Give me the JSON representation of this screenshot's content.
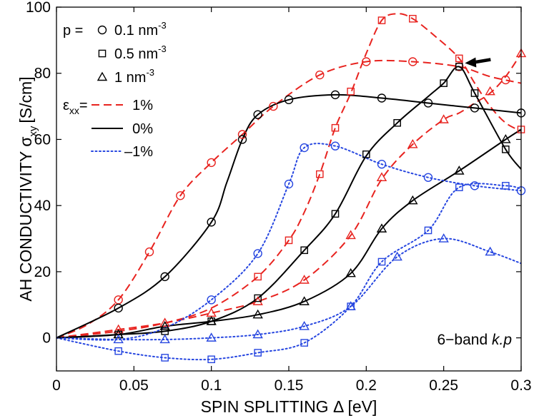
{
  "chart_data": {
    "type": "line",
    "title": "",
    "xlabel": "SPIN SPLITTING Δ [eV]",
    "ylabel": "AH CONDUCTIVITY σ",
    "ylabel_sub": "xy",
    "ylabel_unit": "[S/cm]",
    "xlim": [
      0,
      0.3
    ],
    "ylim": [
      -10,
      100
    ],
    "xticks": [
      0,
      0.05,
      0.1,
      0.15,
      0.2,
      0.25,
      0.3
    ],
    "xtick_labels": [
      "0",
      "0.05",
      "0.1",
      "0.15",
      "0.2",
      "0.25",
      "0.3"
    ],
    "yticks": [
      0,
      20,
      40,
      60,
      80,
      100
    ],
    "ytick_labels": [
      "0",
      "20",
      "40",
      "60",
      "80",
      "100"
    ],
    "grid": false,
    "colors": {
      "plus": "#e8231f",
      "zero": "#000000",
      "minus": "#2646e0"
    },
    "legend": {
      "p_prefix": "p =",
      "markers": [
        {
          "marker": "circle",
          "label": "0.1 nm",
          "sup": "-3"
        },
        {
          "marker": "square",
          "label": "0.5 nm",
          "sup": "-3"
        },
        {
          "marker": "triangle",
          "label": "1 nm",
          "sup": "-3"
        }
      ],
      "strain_prefix": "ε",
      "strain_sub": "xx",
      "strain_eq": "=",
      "lines": [
        {
          "style": "dashed",
          "group": "plus",
          "label": "1%"
        },
        {
          "style": "solid",
          "group": "zero",
          "label": "0%"
        },
        {
          "style": "dotted",
          "group": "minus",
          "label": "–1%"
        }
      ]
    },
    "annotation": {
      "prefix": "6−band ",
      "italic": "k.p"
    },
    "arrow": {
      "x": 0.26,
      "y": 83.5
    },
    "series": [
      {
        "name": "p=0.1, +1%",
        "group": "plus",
        "style": "dashed",
        "marker": "circle",
        "curve": [
          [
            0,
            0
          ],
          [
            0.02,
            4
          ],
          [
            0.04,
            11.5
          ],
          [
            0.06,
            26
          ],
          [
            0.08,
            43
          ],
          [
            0.1,
            53
          ],
          [
            0.12,
            61.5
          ],
          [
            0.14,
            70
          ],
          [
            0.17,
            79.5
          ],
          [
            0.2,
            83.5
          ],
          [
            0.23,
            83.5
          ],
          [
            0.26,
            82
          ],
          [
            0.28,
            79
          ],
          [
            0.3,
            77
          ]
        ],
        "points": [
          [
            0.04,
            11.5
          ],
          [
            0.06,
            26
          ],
          [
            0.08,
            43
          ],
          [
            0.1,
            53
          ],
          [
            0.12,
            61.5
          ],
          [
            0.14,
            70
          ],
          [
            0.17,
            79.5
          ],
          [
            0.2,
            83.5
          ],
          [
            0.23,
            83.5
          ],
          [
            0.26,
            82
          ],
          [
            0.29,
            78
          ]
        ]
      },
      {
        "name": "p=0.5, +1%",
        "group": "plus",
        "style": "dashed",
        "marker": "square",
        "curve": [
          [
            0,
            0
          ],
          [
            0.04,
            2
          ],
          [
            0.07,
            4.5
          ],
          [
            0.1,
            9
          ],
          [
            0.13,
            18.5
          ],
          [
            0.15,
            29.5
          ],
          [
            0.16,
            38
          ],
          [
            0.17,
            49.5
          ],
          [
            0.18,
            63.5
          ],
          [
            0.19,
            74
          ],
          [
            0.2,
            86
          ],
          [
            0.21,
            96
          ],
          [
            0.22,
            98
          ],
          [
            0.23,
            96.5
          ],
          [
            0.245,
            91
          ],
          [
            0.26,
            84.5
          ],
          [
            0.27,
            77
          ],
          [
            0.28,
            70
          ],
          [
            0.29,
            65
          ],
          [
            0.3,
            62.5
          ]
        ],
        "points": [
          [
            0.13,
            18.5
          ],
          [
            0.15,
            29.5
          ],
          [
            0.17,
            49.5
          ],
          [
            0.18,
            63.5
          ],
          [
            0.19,
            74.5
          ],
          [
            0.21,
            96
          ],
          [
            0.23,
            96.5
          ],
          [
            0.26,
            84.5
          ],
          [
            0.3,
            63
          ]
        ]
      },
      {
        "name": "p=1, +1%",
        "group": "plus",
        "style": "dashed",
        "marker": "triangle",
        "curve": [
          [
            0,
            0
          ],
          [
            0.04,
            2.5
          ],
          [
            0.07,
            4.5
          ],
          [
            0.1,
            7.5
          ],
          [
            0.13,
            11
          ],
          [
            0.16,
            17.5
          ],
          [
            0.19,
            31
          ],
          [
            0.21,
            48
          ],
          [
            0.23,
            58.5
          ],
          [
            0.25,
            66
          ],
          [
            0.26,
            68
          ],
          [
            0.27,
            71
          ],
          [
            0.28,
            74
          ],
          [
            0.29,
            79
          ],
          [
            0.3,
            86
          ]
        ],
        "points": [
          [
            0.04,
            2.5
          ],
          [
            0.07,
            4.5
          ],
          [
            0.1,
            7.5
          ],
          [
            0.13,
            11
          ],
          [
            0.16,
            17.5
          ],
          [
            0.19,
            31
          ],
          [
            0.21,
            48.5
          ],
          [
            0.23,
            58.5
          ],
          [
            0.25,
            66
          ],
          [
            0.28,
            74.5
          ],
          [
            0.3,
            86
          ]
        ]
      },
      {
        "name": "p=0.1, 0%",
        "group": "zero",
        "style": "solid",
        "marker": "circle",
        "curve": [
          [
            0,
            0
          ],
          [
            0.04,
            9
          ],
          [
            0.07,
            18.5
          ],
          [
            0.1,
            35
          ],
          [
            0.11,
            47
          ],
          [
            0.12,
            60
          ],
          [
            0.13,
            67.5
          ],
          [
            0.15,
            72
          ],
          [
            0.18,
            73.5
          ],
          [
            0.21,
            72.5
          ],
          [
            0.24,
            71
          ],
          [
            0.27,
            69.5
          ],
          [
            0.3,
            68
          ]
        ],
        "points": [
          [
            0.04,
            9
          ],
          [
            0.07,
            18.5
          ],
          [
            0.1,
            35
          ],
          [
            0.12,
            60
          ],
          [
            0.13,
            67.5
          ],
          [
            0.15,
            72
          ],
          [
            0.18,
            73.5
          ],
          [
            0.21,
            72.5
          ],
          [
            0.24,
            71
          ],
          [
            0.27,
            69.5
          ],
          [
            0.3,
            68
          ]
        ]
      },
      {
        "name": "p=0.5, 0%",
        "group": "zero",
        "style": "solid",
        "marker": "square",
        "curve": [
          [
            0,
            0
          ],
          [
            0.04,
            1
          ],
          [
            0.07,
            2
          ],
          [
            0.1,
            5
          ],
          [
            0.13,
            12
          ],
          [
            0.16,
            26.5
          ],
          [
            0.18,
            37.5
          ],
          [
            0.2,
            55
          ],
          [
            0.22,
            65
          ],
          [
            0.24,
            73
          ],
          [
            0.25,
            77
          ],
          [
            0.26,
            82
          ],
          [
            0.27,
            74
          ],
          [
            0.29,
            57
          ],
          [
            0.3,
            51
          ]
        ],
        "points": [
          [
            0.04,
            1
          ],
          [
            0.07,
            2
          ],
          [
            0.1,
            5
          ],
          [
            0.13,
            12
          ],
          [
            0.16,
            26.5
          ],
          [
            0.18,
            37.5
          ],
          [
            0.2,
            55.5
          ],
          [
            0.22,
            65
          ],
          [
            0.25,
            77
          ],
          [
            0.26,
            82
          ],
          [
            0.27,
            74
          ],
          [
            0.29,
            57
          ]
        ]
      },
      {
        "name": "p=1, 0%",
        "group": "zero",
        "style": "solid",
        "marker": "triangle",
        "curve": [
          [
            0,
            0
          ],
          [
            0.04,
            1
          ],
          [
            0.07,
            3.5
          ],
          [
            0.1,
            5
          ],
          [
            0.13,
            7
          ],
          [
            0.16,
            11
          ],
          [
            0.19,
            19.5
          ],
          [
            0.21,
            33
          ],
          [
            0.23,
            41.5
          ],
          [
            0.26,
            50.5
          ],
          [
            0.29,
            60
          ],
          [
            0.3,
            63
          ]
        ],
        "points": [
          [
            0.04,
            1
          ],
          [
            0.07,
            3.5
          ],
          [
            0.1,
            5
          ],
          [
            0.13,
            7
          ],
          [
            0.16,
            11
          ],
          [
            0.19,
            19.5
          ],
          [
            0.21,
            33
          ],
          [
            0.23,
            41.5
          ],
          [
            0.26,
            50.5
          ],
          [
            0.29,
            60
          ]
        ]
      },
      {
        "name": "p=0.1, -1%",
        "group": "minus",
        "style": "dotted",
        "marker": "circle",
        "curve": [
          [
            0,
            0
          ],
          [
            0.04,
            -0.5
          ],
          [
            0.07,
            3
          ],
          [
            0.1,
            11.5
          ],
          [
            0.13,
            25.5
          ],
          [
            0.15,
            46.5
          ],
          [
            0.16,
            57.5
          ],
          [
            0.18,
            58
          ],
          [
            0.21,
            52.5
          ],
          [
            0.24,
            48.5
          ],
          [
            0.27,
            46
          ],
          [
            0.3,
            44.5
          ]
        ],
        "points": [
          [
            0.1,
            11.5
          ],
          [
            0.13,
            25.5
          ],
          [
            0.15,
            46.5
          ],
          [
            0.16,
            57.5
          ],
          [
            0.18,
            58
          ],
          [
            0.21,
            52.5
          ],
          [
            0.24,
            48.5
          ],
          [
            0.27,
            46
          ],
          [
            0.3,
            44.5
          ]
        ]
      },
      {
        "name": "p=0.5, -1%",
        "group": "minus",
        "style": "dotted",
        "marker": "square",
        "curve": [
          [
            0,
            0
          ],
          [
            0.04,
            -4
          ],
          [
            0.07,
            -6
          ],
          [
            0.1,
            -6.5
          ],
          [
            0.13,
            -4.5
          ],
          [
            0.16,
            -1.5
          ],
          [
            0.19,
            9.5
          ],
          [
            0.21,
            23
          ],
          [
            0.24,
            32.5
          ],
          [
            0.26,
            45.5
          ],
          [
            0.29,
            46
          ],
          [
            0.3,
            45
          ]
        ],
        "points": [
          [
            0.04,
            -4
          ],
          [
            0.07,
            -6
          ],
          [
            0.1,
            -6.5
          ],
          [
            0.13,
            -4.5
          ],
          [
            0.16,
            -1.5
          ],
          [
            0.19,
            9.5
          ],
          [
            0.21,
            23
          ],
          [
            0.24,
            32.5
          ],
          [
            0.26,
            45.5
          ],
          [
            0.29,
            46
          ]
        ]
      },
      {
        "name": "p=1, -1%",
        "group": "minus",
        "style": "dotted",
        "marker": "triangle",
        "curve": [
          [
            0,
            0
          ],
          [
            0.04,
            -0.5
          ],
          [
            0.07,
            -0.5
          ],
          [
            0.1,
            0
          ],
          [
            0.13,
            1
          ],
          [
            0.16,
            3.5
          ],
          [
            0.19,
            9.5
          ],
          [
            0.22,
            24.5
          ],
          [
            0.25,
            30
          ],
          [
            0.28,
            26
          ],
          [
            0.3,
            22.5
          ]
        ],
        "points": [
          [
            0.04,
            -0.5
          ],
          [
            0.07,
            -0.5
          ],
          [
            0.1,
            0
          ],
          [
            0.13,
            1
          ],
          [
            0.16,
            3.5
          ],
          [
            0.19,
            9.5
          ],
          [
            0.22,
            24.5
          ],
          [
            0.25,
            30
          ],
          [
            0.28,
            26
          ]
        ]
      }
    ]
  }
}
